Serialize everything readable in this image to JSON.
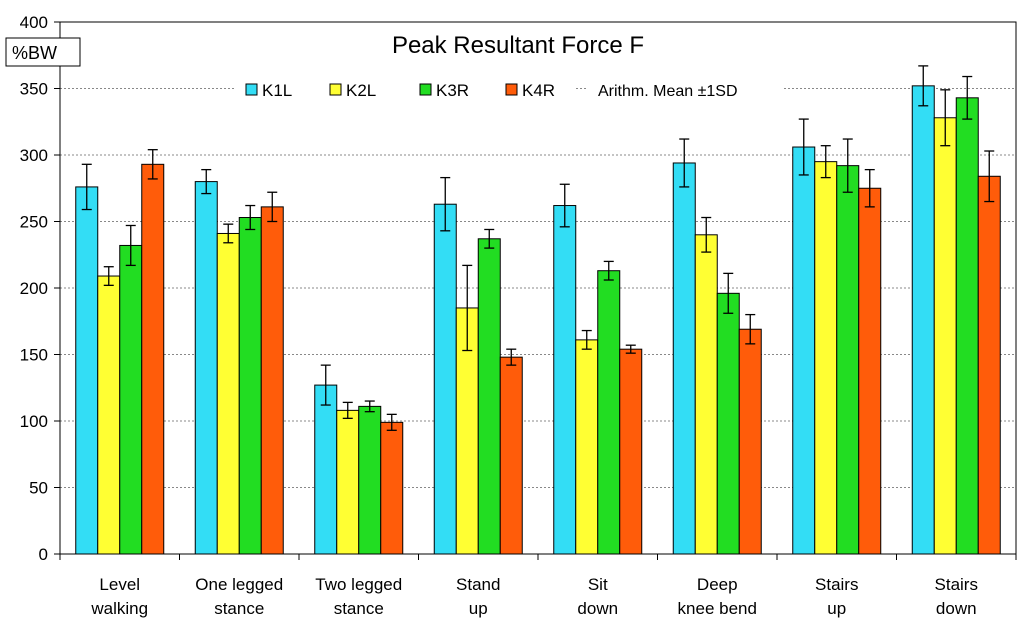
{
  "chart_data": {
    "type": "bar",
    "title": "Peak Resultant Force F",
    "ylabel": "%BW",
    "note": "Arithm. Mean ±1SD",
    "ylim": [
      0,
      400
    ],
    "yticks": [
      0,
      50,
      100,
      150,
      200,
      250,
      300,
      350,
      400
    ],
    "grid": true,
    "legend_position": "top",
    "categories": [
      [
        "Level",
        "walking"
      ],
      [
        "One legged",
        "stance"
      ],
      [
        "Two legged",
        "stance"
      ],
      [
        "Stand",
        "up"
      ],
      [
        "Sit",
        "down"
      ],
      [
        "Deep",
        "knee bend"
      ],
      [
        "Stairs",
        "up"
      ],
      [
        "Stairs",
        "down"
      ]
    ],
    "series": [
      {
        "name": "K1L",
        "color": "#33ddf5",
        "values": [
          276,
          280,
          127,
          263,
          262,
          294,
          306,
          352
        ],
        "sd": [
          17,
          9,
          15,
          20,
          16,
          18,
          21,
          15
        ]
      },
      {
        "name": "K2L",
        "color": "#ffff33",
        "values": [
          209,
          241,
          108,
          185,
          161,
          240,
          295,
          328
        ],
        "sd": [
          7,
          7,
          6,
          32,
          7,
          13,
          12,
          21
        ]
      },
      {
        "name": "K3R",
        "color": "#22dd22",
        "values": [
          232,
          253,
          111,
          237,
          213,
          196,
          292,
          343
        ],
        "sd": [
          15,
          9,
          4,
          7,
          7,
          15,
          20,
          16
        ]
      },
      {
        "name": "K4R",
        "color": "#ff5c0a",
        "values": [
          293,
          261,
          99,
          148,
          154,
          169,
          275,
          284
        ],
        "sd": [
          11,
          11,
          6,
          6,
          3,
          11,
          14,
          19
        ]
      }
    ]
  }
}
